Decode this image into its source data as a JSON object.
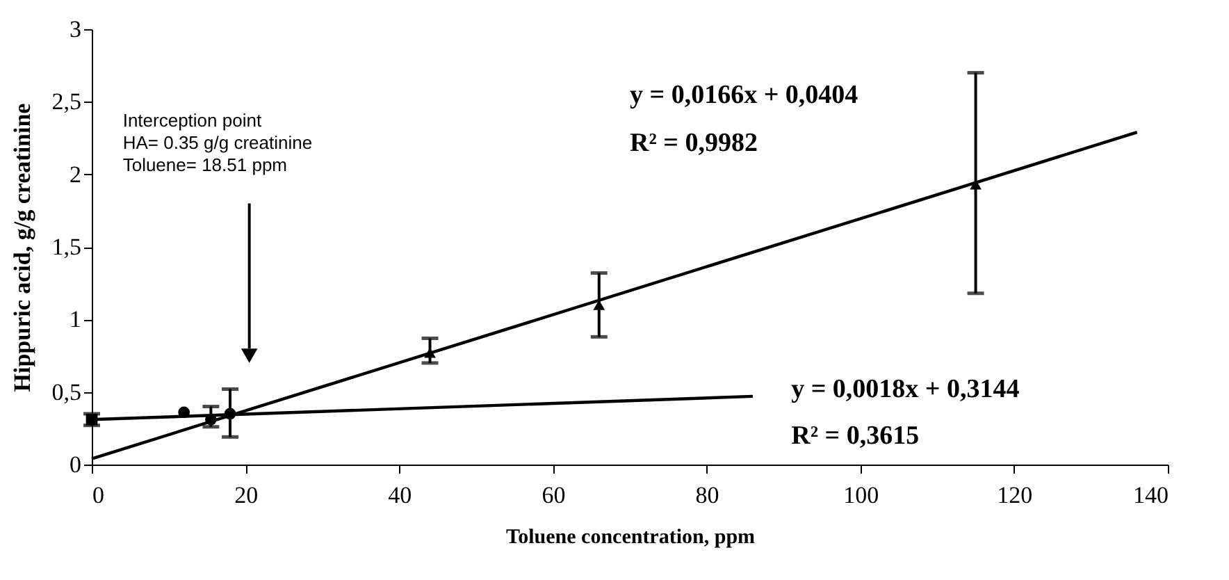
{
  "chart_data": {
    "type": "scatter",
    "xlabel": "Toluene concentration, ppm",
    "ylabel": "Hippuric acid, g/g creatinine",
    "xlim": [
      0,
      140
    ],
    "xticks": [
      0,
      20,
      40,
      60,
      80,
      100,
      120,
      140
    ],
    "ylim": [
      0,
      3
    ],
    "yticks": [
      0,
      {
        "value": 0.5,
        "label": "0,5"
      },
      1,
      {
        "value": 1.5,
        "label": "1,5"
      },
      2,
      {
        "value": 2.5,
        "label": "2,5"
      },
      3
    ],
    "grid": false,
    "series": [
      {
        "marker": "square",
        "color": "#000000",
        "x": [
          0
        ],
        "values": [
          0.31
        ],
        "errors": [
          [
            0.27,
            0.35
          ]
        ]
      },
      {
        "marker": "circle",
        "color": "#000000",
        "x": [
          12,
          15.5,
          18
        ],
        "values": [
          0.36,
          0.31,
          0.35
        ],
        "errors": [
          null,
          [
            0.26,
            0.4
          ],
          [
            0.19,
            0.52
          ]
        ]
      },
      {
        "marker": "triangle",
        "color": "#000000",
        "x": [
          44,
          66,
          115
        ],
        "values": [
          0.77,
          1.1,
          1.93
        ],
        "errors": [
          [
            0.7,
            0.87
          ],
          [
            0.88,
            1.32
          ],
          [
            1.18,
            2.7
          ]
        ]
      },
      {
        "type": "line",
        "marker": "none",
        "color": "#000000",
        "x": [
          0,
          136
        ],
        "values": [
          0.04,
          2.29
        ]
      },
      {
        "type": "line",
        "marker": "none",
        "color": "#000000",
        "x": [
          0,
          86
        ],
        "values": [
          0.31,
          0.47
        ]
      }
    ],
    "annotations": [
      "Interception point\nHA= 0.35 g/g creatinine\nToluene= 18.51 ppm",
      "y = 0,0166x + 0,0404",
      "R² = 0,9982",
      "y = 0,0018x + 0,3144",
      "R² = 0,3615"
    ]
  }
}
